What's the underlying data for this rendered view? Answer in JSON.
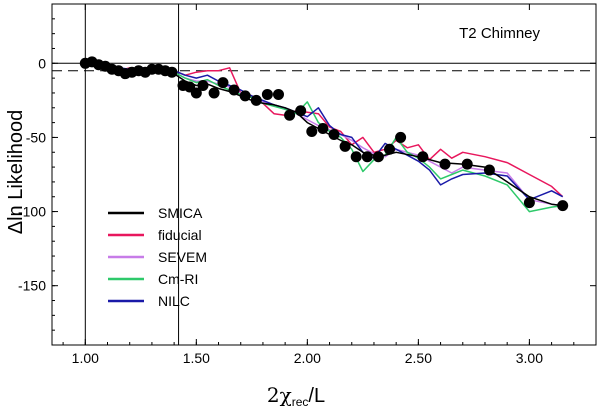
{
  "chart_data": {
    "type": "line",
    "title": "",
    "annotation": "T2 Chimney",
    "xlabel": "2χrec/L",
    "xlabel_main": "2χ",
    "xlabel_sub": "rec",
    "xlabel_tail": "/L",
    "ylabel": "Δln Likelihood",
    "xlim": [
      0.85,
      3.3
    ],
    "ylim": [
      -190,
      40
    ],
    "xticks": [
      "1.00",
      "1.50",
      "2.00",
      "2.50",
      "3.00"
    ],
    "xtick_values": [
      1.0,
      1.5,
      2.0,
      2.5,
      3.0
    ],
    "yticks": [
      "0",
      "-50",
      "-100",
      "-150"
    ],
    "ytick_values": [
      0,
      -50,
      -100,
      -150
    ],
    "reference_lines": {
      "vertical_solid_x": [
        1.0,
        1.42
      ],
      "horizontal_solid_y": 0,
      "horizontal_dashed_y": -5
    },
    "points": {
      "name": "SMICA points",
      "color": "#000000",
      "x": [
        1.0,
        1.03,
        1.06,
        1.09,
        1.12,
        1.15,
        1.18,
        1.21,
        1.24,
        1.27,
        1.3,
        1.33,
        1.36,
        1.39,
        1.44,
        1.47,
        1.5,
        1.53,
        1.58,
        1.62,
        1.67,
        1.72,
        1.77,
        1.82,
        1.87,
        1.92,
        1.97,
        2.02,
        2.07,
        2.12,
        2.17,
        2.22,
        2.27,
        2.32,
        2.37,
        2.42,
        2.52,
        2.62,
        2.72,
        2.82,
        3.0,
        3.15
      ],
      "y": [
        0,
        1,
        -1,
        -2,
        -4,
        -5,
        -7,
        -6,
        -5,
        -6,
        -4,
        -4,
        -5,
        -6,
        -15,
        -16,
        -20,
        -15,
        -20,
        -13,
        -18,
        -22,
        -25,
        -21,
        -21,
        -35,
        -32,
        -46,
        -44,
        -48,
        -56,
        -63,
        -63,
        -63,
        -58,
        -50,
        -63,
        -68,
        -68,
        -72,
        -94,
        -96
      ]
    },
    "series": [
      {
        "name": "SMICA",
        "color": "#000000",
        "x": [
          1.0,
          1.05,
          1.1,
          1.15,
          1.2,
          1.25,
          1.3,
          1.35,
          1.4,
          1.45,
          1.5,
          1.55,
          1.6,
          1.65,
          1.7,
          1.75,
          1.8,
          1.85,
          1.9,
          1.95,
          2.0,
          2.05,
          2.1,
          2.15,
          2.2,
          2.25,
          2.3,
          2.35,
          2.4,
          2.5,
          2.6,
          2.7,
          2.8,
          2.9,
          3.0,
          3.1,
          3.15
        ],
        "y": [
          0,
          -1,
          -3,
          -5,
          -5,
          -5,
          -5,
          -5,
          -7,
          -12,
          -15,
          -14,
          -17,
          -19,
          -22,
          -25,
          -27,
          -28,
          -30,
          -33,
          -40,
          -44,
          -48,
          -52,
          -55,
          -60,
          -62,
          -62,
          -60,
          -63,
          -67,
          -68,
          -70,
          -80,
          -90,
          -95,
          -96
        ]
      },
      {
        "name": "fiducial",
        "color": "#e8175d",
        "x": [
          1.0,
          1.05,
          1.1,
          1.15,
          1.2,
          1.25,
          1.3,
          1.35,
          1.4,
          1.45,
          1.5,
          1.55,
          1.6,
          1.65,
          1.7,
          1.75,
          1.8,
          1.85,
          1.9,
          1.95,
          2.0,
          2.05,
          2.1,
          2.15,
          2.2,
          2.25,
          2.3,
          2.35,
          2.4,
          2.45,
          2.5,
          2.55,
          2.6,
          2.65,
          2.7,
          2.8,
          2.9,
          3.0,
          3.1,
          3.15
        ],
        "y": [
          0,
          -2,
          -4,
          -5,
          -3,
          -5,
          -4,
          -3,
          -5,
          -8,
          -6,
          -5,
          -5,
          -3,
          -20,
          -22,
          -27,
          -34,
          -35,
          -32,
          -33,
          -34,
          -43,
          -46,
          -55,
          -50,
          -60,
          -58,
          -52,
          -57,
          -55,
          -65,
          -58,
          -64,
          -60,
          -63,
          -67,
          -75,
          -83,
          -90
        ]
      },
      {
        "name": "SEVEM",
        "color": "#c77ce8",
        "x": [
          1.0,
          1.05,
          1.1,
          1.15,
          1.2,
          1.25,
          1.3,
          1.35,
          1.4,
          1.45,
          1.5,
          1.55,
          1.6,
          1.65,
          1.7,
          1.75,
          1.8,
          1.85,
          1.9,
          1.95,
          2.0,
          2.05,
          2.1,
          2.15,
          2.2,
          2.25,
          2.3,
          2.35,
          2.4,
          2.45,
          2.5,
          2.55,
          2.6,
          2.65,
          2.7,
          2.8,
          2.9,
          3.0,
          3.1,
          3.15
        ],
        "y": [
          0,
          -1,
          -2,
          -4,
          -4,
          -5,
          -4,
          -4,
          -6,
          -10,
          -12,
          -12,
          -14,
          -16,
          -20,
          -23,
          -26,
          -28,
          -31,
          -34,
          -38,
          -42,
          -45,
          -48,
          -52,
          -57,
          -61,
          -63,
          -58,
          -60,
          -62,
          -66,
          -70,
          -74,
          -70,
          -72,
          -74,
          -92,
          -95,
          -96
        ]
      },
      {
        "name": "Cm-RI",
        "color": "#2ec96a",
        "x": [
          1.0,
          1.05,
          1.1,
          1.15,
          1.2,
          1.25,
          1.3,
          1.35,
          1.4,
          1.45,
          1.5,
          1.55,
          1.6,
          1.65,
          1.7,
          1.75,
          1.8,
          1.85,
          1.9,
          1.95,
          2.0,
          2.05,
          2.1,
          2.15,
          2.2,
          2.25,
          2.3,
          2.35,
          2.4,
          2.45,
          2.5,
          2.55,
          2.6,
          2.65,
          2.7,
          2.8,
          2.9,
          3.0,
          3.1,
          3.15
        ],
        "y": [
          0,
          0,
          -2,
          -4,
          -5,
          -4,
          -5,
          -4,
          -6,
          -10,
          -13,
          -11,
          -15,
          -18,
          -21,
          -23,
          -27,
          -29,
          -31,
          -34,
          -26,
          -40,
          -46,
          -50,
          -58,
          -73,
          -65,
          -62,
          -50,
          -60,
          -64,
          -70,
          -78,
          -75,
          -72,
          -76,
          -82,
          -100,
          -97,
          -96
        ]
      },
      {
        "name": "NILC",
        "color": "#1a1aa8",
        "x": [
          1.0,
          1.05,
          1.1,
          1.15,
          1.2,
          1.25,
          1.3,
          1.35,
          1.4,
          1.45,
          1.5,
          1.55,
          1.6,
          1.65,
          1.7,
          1.75,
          1.8,
          1.85,
          1.9,
          1.95,
          2.0,
          2.05,
          2.1,
          2.15,
          2.2,
          2.25,
          2.3,
          2.35,
          2.4,
          2.45,
          2.5,
          2.55,
          2.6,
          2.65,
          2.7,
          2.8,
          2.9,
          3.0,
          3.1,
          3.15
        ],
        "y": [
          0,
          1,
          -2,
          -3,
          -4,
          -3,
          -4,
          -3,
          -5,
          -8,
          -10,
          -8,
          -12,
          -15,
          -18,
          -22,
          -25,
          -28,
          -30,
          -33,
          -36,
          -30,
          -42,
          -48,
          -50,
          -60,
          -64,
          -54,
          -58,
          -62,
          -66,
          -72,
          -82,
          -78,
          -75,
          -74,
          -76,
          -92,
          -86,
          -90
        ]
      }
    ],
    "legend": {
      "placement": "bottom-left",
      "entries": [
        {
          "label": "SMICA",
          "color": "#000000"
        },
        {
          "label": "fiducial",
          "color": "#e8175d"
        },
        {
          "label": "SEVEM",
          "color": "#c77ce8"
        },
        {
          "label": "Cm-RI",
          "color": "#2ec96a"
        },
        {
          "label": "NILC",
          "color": "#1a1aa8"
        }
      ]
    }
  }
}
